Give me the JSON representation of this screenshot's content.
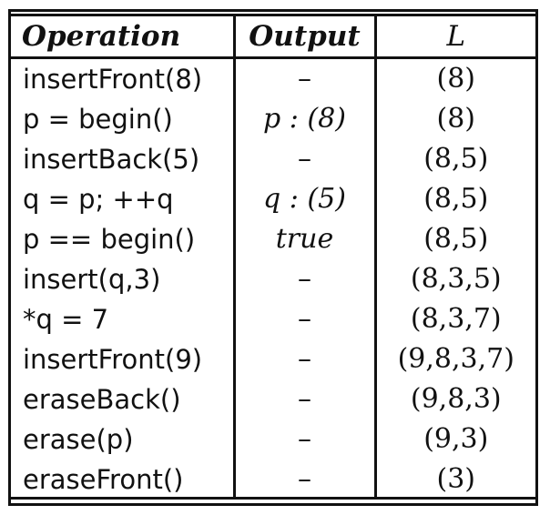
{
  "table": {
    "headers": [
      "Operation",
      "Output",
      "L"
    ],
    "rows": [
      {
        "operation": "insertFront(8)",
        "output": "–",
        "list": "(8)"
      },
      {
        "operation": "p = begin()",
        "output": "p : (8)",
        "list": "(8)"
      },
      {
        "operation": "insertBack(5)",
        "output": "–",
        "list": "(8,5)"
      },
      {
        "operation": "q = p;  ++q",
        "output": "q : (5)",
        "list": "(8,5)"
      },
      {
        "operation": "p == begin()",
        "output": "true",
        "list": "(8,5)"
      },
      {
        "operation": "insert(q,3)",
        "output": "–",
        "list": "(8,3,5)"
      },
      {
        "operation": "*q = 7",
        "output": "–",
        "list": "(8,3,7)"
      },
      {
        "operation": "insertFront(9)",
        "output": "–",
        "list": "(9,8,3,7)"
      },
      {
        "operation": "eraseBack()",
        "output": "–",
        "list": "(9,8,3)"
      },
      {
        "operation": "erase(p)",
        "output": "–",
        "list": "(9,3)"
      },
      {
        "operation": "eraseFront()",
        "output": "–",
        "list": "(3)"
      }
    ]
  }
}
